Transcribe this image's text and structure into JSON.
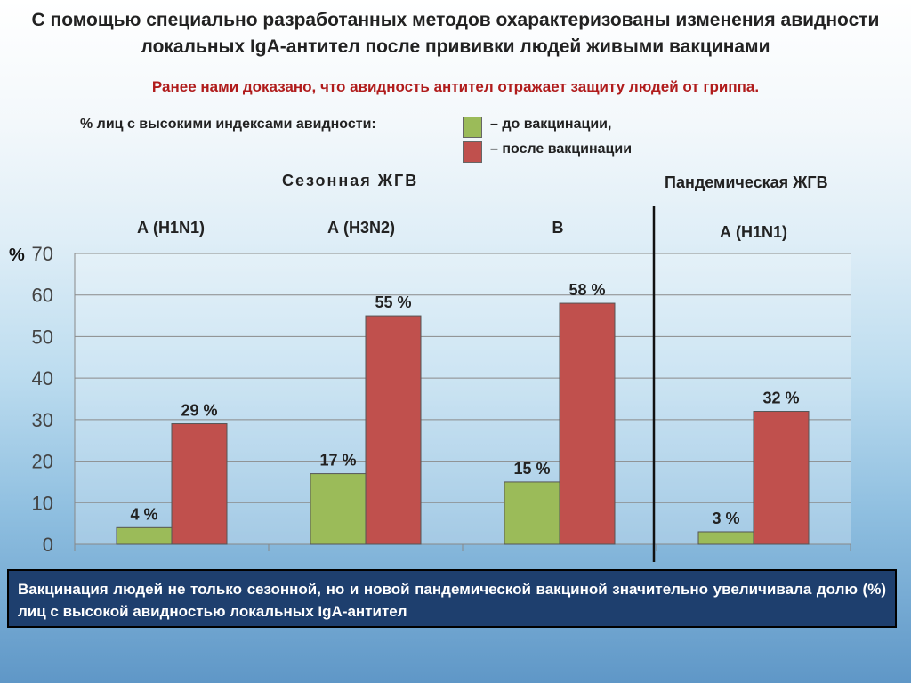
{
  "title": "С помощью специально разработанных методов охарактеризованы изменения авидности локальных IgA-антител после прививки людей живыми вакцинами",
  "subtitle": "Ранее нами доказано, что авидность антител отражает защиту людей от гриппа.",
  "legend": {
    "label": "% лиц с высокими индексами авидности:",
    "before": "– до вакцинации,",
    "after": "– после вакцинации"
  },
  "group_titles": {
    "seasonal": "Сезонная ЖГВ",
    "pandemic": "Пандемическая ЖГВ"
  },
  "colors": {
    "before": "#9bbb59",
    "after": "#c0504d",
    "conclusion_bg": "#1e3f6e",
    "subtitle": "#b01c1c"
  },
  "chart_data": {
    "type": "bar",
    "categories": [
      "А (H1N1)",
      "А (H3N2)",
      "В",
      "А (H1N1)"
    ],
    "series": [
      {
        "name": "до вакцинации",
        "values": [
          4,
          17,
          15,
          3
        ]
      },
      {
        "name": "после вакцинации",
        "values": [
          29,
          55,
          58,
          32
        ]
      }
    ],
    "data_labels": {
      "before": [
        "4 %",
        "17 %",
        "15 %",
        "3 %"
      ],
      "after": [
        "29 %",
        "55 %",
        "58 %",
        "32 %"
      ]
    },
    "ylabel": "%",
    "ylim": [
      0,
      70
    ],
    "yticks": [
      "0",
      "10",
      "20",
      "30",
      "40",
      "50",
      "60",
      "70"
    ],
    "grid": true,
    "legend_position": "top"
  },
  "conclusion": "Вакцинация людей  не только сезонной, но и новой пандемической вакциной значительно увеличивала долю (%) лиц с высокой авидностью локальных IgA-антител"
}
